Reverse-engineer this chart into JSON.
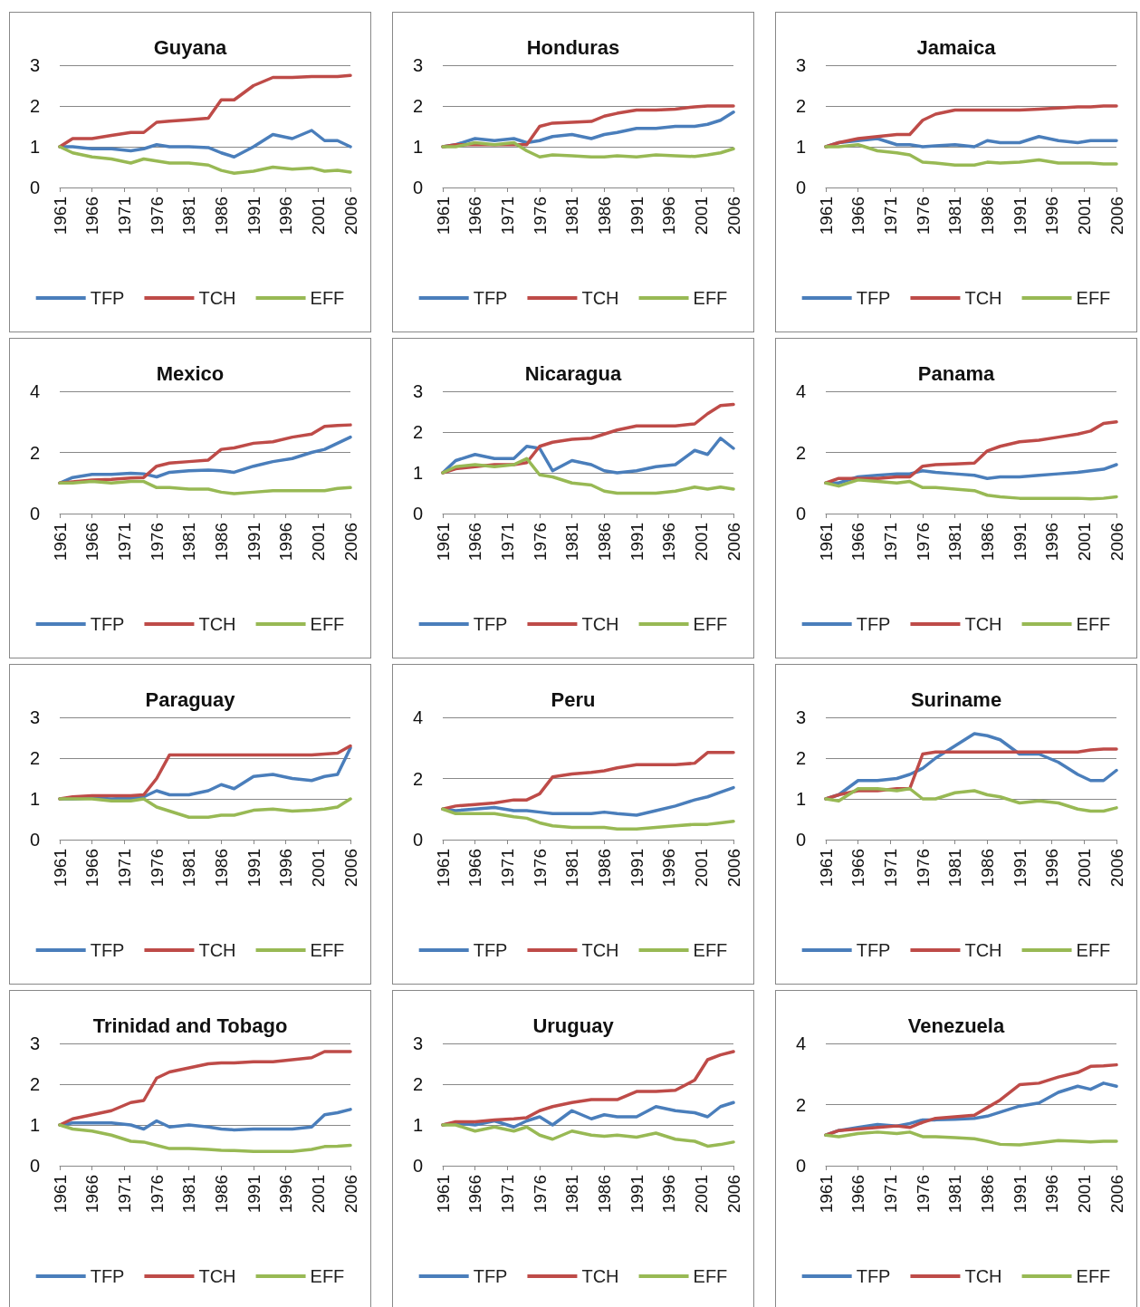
{
  "chart_data": [
    {
      "type": "line",
      "title": "Guyana",
      "x": [
        1961,
        1963,
        1966,
        1969,
        1972,
        1974,
        1976,
        1978,
        1981,
        1984,
        1986,
        1988,
        1991,
        1994,
        1997,
        2000,
        2002,
        2004,
        2006
      ],
      "xlim": [
        1961,
        2006
      ],
      "xticks": [
        1961,
        1966,
        1971,
        1976,
        1981,
        1986,
        1991,
        1996,
        2001,
        2006
      ],
      "ylim": [
        0,
        3
      ],
      "yticks": [
        0,
        1,
        2,
        3
      ],
      "grid": "y",
      "legend": "bottom",
      "marker": "none",
      "series": [
        {
          "name": "TFP",
          "color": "#4a7ebb",
          "values": [
            1,
            1,
            0.95,
            0.95,
            0.9,
            0.95,
            1.05,
            1,
            1,
            0.98,
            0.85,
            0.75,
            1,
            1.3,
            1.2,
            1.4,
            1.15,
            1.15,
            1
          ]
        },
        {
          "name": "TCH",
          "color": "#be4b48",
          "values": [
            1,
            1.2,
            1.2,
            1.28,
            1.35,
            1.35,
            1.6,
            1.63,
            1.66,
            1.7,
            2.15,
            2.15,
            2.5,
            2.7,
            2.7,
            2.72,
            2.72,
            2.72,
            2.75
          ]
        },
        {
          "name": "EFF",
          "color": "#98b954",
          "values": [
            1,
            0.85,
            0.75,
            0.7,
            0.6,
            0.7,
            0.65,
            0.6,
            0.6,
            0.55,
            0.42,
            0.35,
            0.4,
            0.5,
            0.45,
            0.48,
            0.4,
            0.42,
            0.38
          ]
        }
      ]
    },
    {
      "type": "line",
      "title": "Honduras",
      "x": [
        1961,
        1963,
        1966,
        1969,
        1972,
        1974,
        1976,
        1978,
        1981,
        1984,
        1986,
        1988,
        1991,
        1994,
        1997,
        2000,
        2002,
        2004,
        2006
      ],
      "xlim": [
        1961,
        2006
      ],
      "xticks": [
        1961,
        1966,
        1971,
        1976,
        1981,
        1986,
        1991,
        1996,
        2001,
        2006
      ],
      "ylim": [
        0,
        3
      ],
      "yticks": [
        0,
        1,
        2,
        3
      ],
      "grid": "y",
      "legend": "bottom",
      "marker": "none",
      "series": [
        {
          "name": "TFP",
          "color": "#4a7ebb",
          "values": [
            1,
            1.05,
            1.2,
            1.15,
            1.2,
            1.1,
            1.15,
            1.25,
            1.3,
            1.2,
            1.3,
            1.35,
            1.45,
            1.45,
            1.5,
            1.5,
            1.55,
            1.65,
            1.85
          ]
        },
        {
          "name": "TCH",
          "color": "#be4b48",
          "values": [
            1,
            1.05,
            1.05,
            1.05,
            1.05,
            1.05,
            1.5,
            1.58,
            1.6,
            1.62,
            1.75,
            1.82,
            1.9,
            1.9,
            1.92,
            1.98,
            2,
            2,
            2
          ]
        },
        {
          "name": "EFF",
          "color": "#98b954",
          "values": [
            1,
            1,
            1.1,
            1.05,
            1.1,
            0.9,
            0.75,
            0.8,
            0.78,
            0.75,
            0.75,
            0.78,
            0.75,
            0.8,
            0.78,
            0.76,
            0.8,
            0.85,
            0.95
          ]
        }
      ]
    },
    {
      "type": "line",
      "title": "Jamaica",
      "x": [
        1961,
        1963,
        1966,
        1969,
        1972,
        1974,
        1976,
        1978,
        1981,
        1984,
        1986,
        1988,
        1991,
        1994,
        1997,
        2000,
        2002,
        2004,
        2006
      ],
      "xlim": [
        1961,
        2006
      ],
      "xticks": [
        1961,
        1966,
        1971,
        1976,
        1981,
        1986,
        1991,
        1996,
        2001,
        2006
      ],
      "ylim": [
        0,
        3
      ],
      "yticks": [
        0,
        1,
        2,
        3
      ],
      "grid": "y",
      "legend": "bottom",
      "marker": "none",
      "series": [
        {
          "name": "TFP",
          "color": "#4a7ebb",
          "values": [
            1,
            1.1,
            1.15,
            1.2,
            1.05,
            1.05,
            1,
            1.02,
            1.05,
            1,
            1.15,
            1.1,
            1.1,
            1.25,
            1.15,
            1.1,
            1.15,
            1.15,
            1.15
          ]
        },
        {
          "name": "TCH",
          "color": "#be4b48",
          "values": [
            1,
            1.1,
            1.2,
            1.25,
            1.3,
            1.3,
            1.65,
            1.8,
            1.9,
            1.9,
            1.9,
            1.9,
            1.9,
            1.92,
            1.95,
            1.98,
            1.98,
            2,
            2
          ]
        },
        {
          "name": "EFF",
          "color": "#98b954",
          "values": [
            1,
            1,
            1.05,
            0.9,
            0.85,
            0.8,
            0.62,
            0.6,
            0.55,
            0.55,
            0.62,
            0.6,
            0.62,
            0.68,
            0.6,
            0.6,
            0.6,
            0.58,
            0.58
          ]
        }
      ]
    },
    {
      "type": "line",
      "title": "Mexico",
      "x": [
        1961,
        1963,
        1966,
        1969,
        1972,
        1974,
        1976,
        1978,
        1981,
        1984,
        1986,
        1988,
        1991,
        1994,
        1997,
        2000,
        2002,
        2004,
        2006
      ],
      "xlim": [
        1961,
        2006
      ],
      "xticks": [
        1961,
        1966,
        1971,
        1976,
        1981,
        1986,
        1991,
        1996,
        2001,
        2006
      ],
      "ylim": [
        0,
        4
      ],
      "yticks": [
        0,
        2,
        4
      ],
      "grid": "y",
      "legend": "bottom",
      "marker": "none",
      "series": [
        {
          "name": "TFP",
          "color": "#4a7ebb",
          "values": [
            1,
            1.18,
            1.28,
            1.28,
            1.32,
            1.3,
            1.2,
            1.35,
            1.4,
            1.42,
            1.4,
            1.35,
            1.55,
            1.7,
            1.8,
            2,
            2.1,
            2.3,
            2.5
          ]
        },
        {
          "name": "TCH",
          "color": "#be4b48",
          "values": [
            1,
            1.04,
            1.1,
            1.12,
            1.16,
            1.18,
            1.55,
            1.65,
            1.7,
            1.75,
            2.1,
            2.15,
            2.3,
            2.35,
            2.5,
            2.6,
            2.85,
            2.88,
            2.9
          ]
        },
        {
          "name": "EFF",
          "color": "#98b954",
          "values": [
            1,
            1,
            1.05,
            1,
            1.05,
            1.05,
            0.85,
            0.85,
            0.8,
            0.8,
            0.7,
            0.65,
            0.7,
            0.75,
            0.75,
            0.75,
            0.75,
            0.82,
            0.85
          ]
        }
      ]
    },
    {
      "type": "line",
      "title": "Nicaragua",
      "x": [
        1961,
        1963,
        1966,
        1969,
        1972,
        1974,
        1976,
        1978,
        1981,
        1984,
        1986,
        1988,
        1991,
        1994,
        1997,
        2000,
        2002,
        2004,
        2006
      ],
      "xlim": [
        1961,
        2006
      ],
      "xticks": [
        1961,
        1966,
        1971,
        1976,
        1981,
        1986,
        1991,
        1996,
        2001,
        2006
      ],
      "ylim": [
        0,
        3
      ],
      "yticks": [
        0,
        1,
        2,
        3
      ],
      "grid": "y",
      "legend": "bottom",
      "marker": "none",
      "series": [
        {
          "name": "TFP",
          "color": "#4a7ebb",
          "values": [
            1,
            1.3,
            1.45,
            1.35,
            1.35,
            1.65,
            1.6,
            1.05,
            1.3,
            1.2,
            1.05,
            1,
            1.05,
            1.15,
            1.2,
            1.55,
            1.45,
            1.85,
            1.6
          ]
        },
        {
          "name": "TCH",
          "color": "#be4b48",
          "values": [
            1,
            1.1,
            1.15,
            1.2,
            1.2,
            1.25,
            1.65,
            1.75,
            1.82,
            1.85,
            1.95,
            2.05,
            2.15,
            2.15,
            2.15,
            2.2,
            2.45,
            2.65,
            2.68
          ]
        },
        {
          "name": "EFF",
          "color": "#98b954",
          "values": [
            1,
            1.15,
            1.2,
            1.15,
            1.2,
            1.35,
            0.95,
            0.9,
            0.75,
            0.7,
            0.55,
            0.5,
            0.5,
            0.5,
            0.55,
            0.65,
            0.6,
            0.65,
            0.6
          ]
        }
      ]
    },
    {
      "type": "line",
      "title": "Panama",
      "x": [
        1961,
        1963,
        1966,
        1969,
        1972,
        1974,
        1976,
        1978,
        1981,
        1984,
        1986,
        1988,
        1991,
        1994,
        1997,
        2000,
        2002,
        2004,
        2006
      ],
      "xlim": [
        1961,
        2006
      ],
      "xticks": [
        1961,
        1966,
        1971,
        1976,
        1981,
        1986,
        1991,
        1996,
        2001,
        2006
      ],
      "ylim": [
        0,
        4
      ],
      "yticks": [
        0,
        2,
        4
      ],
      "grid": "y",
      "legend": "bottom",
      "marker": "none",
      "series": [
        {
          "name": "TFP",
          "color": "#4a7ebb",
          "values": [
            1,
            1,
            1.2,
            1.25,
            1.3,
            1.3,
            1.4,
            1.35,
            1.3,
            1.25,
            1.15,
            1.2,
            1.2,
            1.25,
            1.3,
            1.35,
            1.4,
            1.45,
            1.6
          ]
        },
        {
          "name": "TCH",
          "color": "#be4b48",
          "values": [
            1,
            1.15,
            1.15,
            1.15,
            1.2,
            1.2,
            1.55,
            1.6,
            1.62,
            1.65,
            2.05,
            2.2,
            2.35,
            2.4,
            2.5,
            2.6,
            2.7,
            2.95,
            3
          ]
        },
        {
          "name": "EFF",
          "color": "#98b954",
          "values": [
            1,
            0.9,
            1.1,
            1.05,
            1,
            1.05,
            0.85,
            0.85,
            0.8,
            0.75,
            0.6,
            0.55,
            0.5,
            0.5,
            0.5,
            0.5,
            0.48,
            0.5,
            0.55
          ]
        }
      ]
    },
    {
      "type": "line",
      "title": "Paraguay",
      "x": [
        1961,
        1963,
        1966,
        1969,
        1972,
        1974,
        1976,
        1978,
        1981,
        1984,
        1986,
        1988,
        1991,
        1994,
        1997,
        2000,
        2002,
        2004,
        2006
      ],
      "xlim": [
        1961,
        2006
      ],
      "xticks": [
        1961,
        1966,
        1971,
        1976,
        1981,
        1986,
        1991,
        1996,
        2001,
        2006
      ],
      "ylim": [
        0,
        3
      ],
      "yticks": [
        0,
        1,
        2,
        3
      ],
      "grid": "y",
      "legend": "bottom",
      "marker": "none",
      "series": [
        {
          "name": "TFP",
          "color": "#4a7ebb",
          "values": [
            1,
            1,
            1.02,
            1,
            1.02,
            1.05,
            1.2,
            1.1,
            1.1,
            1.2,
            1.35,
            1.25,
            1.55,
            1.6,
            1.5,
            1.45,
            1.55,
            1.6,
            2.25
          ]
        },
        {
          "name": "TCH",
          "color": "#be4b48",
          "values": [
            1,
            1.05,
            1.08,
            1.08,
            1.08,
            1.1,
            1.5,
            2.08,
            2.08,
            2.08,
            2.08,
            2.08,
            2.08,
            2.08,
            2.08,
            2.08,
            2.1,
            2.12,
            2.3
          ]
        },
        {
          "name": "EFF",
          "color": "#98b954",
          "values": [
            1,
            1,
            1,
            0.95,
            0.95,
            1,
            0.8,
            0.7,
            0.55,
            0.55,
            0.6,
            0.6,
            0.72,
            0.75,
            0.7,
            0.72,
            0.75,
            0.8,
            1
          ]
        }
      ]
    },
    {
      "type": "line",
      "title": "Peru",
      "x": [
        1961,
        1963,
        1966,
        1969,
        1972,
        1974,
        1976,
        1978,
        1981,
        1984,
        1986,
        1988,
        1991,
        1994,
        1997,
        2000,
        2002,
        2004,
        2006
      ],
      "xlim": [
        1961,
        2006
      ],
      "xticks": [
        1961,
        1966,
        1971,
        1976,
        1981,
        1986,
        1991,
        1996,
        2001,
        2006
      ],
      "ylim": [
        0,
        4
      ],
      "yticks": [
        0,
        2,
        4
      ],
      "grid": "y",
      "legend": "bottom",
      "marker": "none",
      "series": [
        {
          "name": "TFP",
          "color": "#4a7ebb",
          "values": [
            1,
            0.95,
            1,
            1.05,
            0.95,
            0.95,
            0.9,
            0.85,
            0.85,
            0.85,
            0.9,
            0.85,
            0.8,
            0.95,
            1.1,
            1.3,
            1.4,
            1.55,
            1.7
          ]
        },
        {
          "name": "TCH",
          "color": "#be4b48",
          "values": [
            1,
            1.1,
            1.15,
            1.2,
            1.3,
            1.3,
            1.5,
            2.05,
            2.15,
            2.2,
            2.25,
            2.35,
            2.45,
            2.45,
            2.45,
            2.5,
            2.85,
            2.85,
            2.85
          ]
        },
        {
          "name": "EFF",
          "color": "#98b954",
          "values": [
            1,
            0.85,
            0.85,
            0.85,
            0.75,
            0.7,
            0.55,
            0.45,
            0.4,
            0.4,
            0.4,
            0.35,
            0.35,
            0.4,
            0.45,
            0.5,
            0.5,
            0.55,
            0.6
          ]
        }
      ]
    },
    {
      "type": "line",
      "title": "Suriname",
      "x": [
        1961,
        1963,
        1966,
        1969,
        1972,
        1974,
        1976,
        1978,
        1981,
        1984,
        1986,
        1988,
        1991,
        1994,
        1997,
        2000,
        2002,
        2004,
        2006
      ],
      "xlim": [
        1961,
        2006
      ],
      "xticks": [
        1961,
        1966,
        1971,
        1976,
        1981,
        1986,
        1991,
        1996,
        2001,
        2006
      ],
      "ylim": [
        0,
        3
      ],
      "yticks": [
        0,
        1,
        2,
        3
      ],
      "grid": "y",
      "legend": "bottom",
      "marker": "none",
      "series": [
        {
          "name": "TFP",
          "color": "#4a7ebb",
          "values": [
            1,
            1.1,
            1.45,
            1.45,
            1.5,
            1.6,
            1.75,
            2,
            2.3,
            2.6,
            2.55,
            2.45,
            2.1,
            2.1,
            1.9,
            1.6,
            1.45,
            1.45,
            1.7
          ]
        },
        {
          "name": "TCH",
          "color": "#be4b48",
          "values": [
            1,
            1.1,
            1.2,
            1.2,
            1.25,
            1.25,
            2.1,
            2.15,
            2.15,
            2.15,
            2.15,
            2.15,
            2.15,
            2.15,
            2.15,
            2.15,
            2.2,
            2.22,
            2.22
          ]
        },
        {
          "name": "EFF",
          "color": "#98b954",
          "values": [
            1,
            0.95,
            1.25,
            1.25,
            1.2,
            1.25,
            1,
            1,
            1.15,
            1.2,
            1.1,
            1.05,
            0.9,
            0.95,
            0.9,
            0.75,
            0.7,
            0.7,
            0.78
          ]
        }
      ]
    },
    {
      "type": "line",
      "title": "Trinidad and Tobago",
      "x": [
        1961,
        1963,
        1966,
        1969,
        1972,
        1974,
        1976,
        1978,
        1981,
        1984,
        1986,
        1988,
        1991,
        1994,
        1997,
        2000,
        2002,
        2004,
        2006
      ],
      "xlim": [
        1961,
        2006
      ],
      "xticks": [
        1961,
        1966,
        1971,
        1976,
        1981,
        1986,
        1991,
        1996,
        2001,
        2006
      ],
      "ylim": [
        0,
        3
      ],
      "yticks": [
        0,
        1,
        2,
        3
      ],
      "grid": "y",
      "legend": "bottom",
      "marker": "none",
      "series": [
        {
          "name": "TFP",
          "color": "#4a7ebb",
          "values": [
            1,
            1.05,
            1.05,
            1.05,
            1,
            0.9,
            1.1,
            0.95,
            1,
            0.95,
            0.9,
            0.88,
            0.9,
            0.9,
            0.9,
            0.95,
            1.25,
            1.3,
            1.38
          ]
        },
        {
          "name": "TCH",
          "color": "#be4b48",
          "values": [
            1,
            1.15,
            1.25,
            1.35,
            1.55,
            1.6,
            2.15,
            2.3,
            2.4,
            2.5,
            2.52,
            2.52,
            2.55,
            2.55,
            2.6,
            2.65,
            2.8,
            2.8,
            2.8
          ]
        },
        {
          "name": "EFF",
          "color": "#98b954",
          "values": [
            1,
            0.9,
            0.85,
            0.75,
            0.6,
            0.58,
            0.5,
            0.42,
            0.42,
            0.4,
            0.38,
            0.37,
            0.35,
            0.35,
            0.35,
            0.4,
            0.47,
            0.48,
            0.5
          ]
        }
      ]
    },
    {
      "type": "line",
      "title": "Uruguay",
      "x": [
        1961,
        1963,
        1966,
        1969,
        1972,
        1974,
        1976,
        1978,
        1981,
        1984,
        1986,
        1988,
        1991,
        1994,
        1997,
        2000,
        2002,
        2004,
        2006
      ],
      "xlim": [
        1961,
        2006
      ],
      "xticks": [
        1961,
        1966,
        1971,
        1976,
        1981,
        1986,
        1991,
        1996,
        2001,
        2006
      ],
      "ylim": [
        0,
        3
      ],
      "yticks": [
        0,
        1,
        2,
        3
      ],
      "grid": "y",
      "legend": "bottom",
      "marker": "none",
      "series": [
        {
          "name": "TFP",
          "color": "#4a7ebb",
          "values": [
            1,
            1.05,
            1,
            1.1,
            0.95,
            1.1,
            1.2,
            1,
            1.35,
            1.15,
            1.25,
            1.2,
            1.2,
            1.45,
            1.35,
            1.3,
            1.2,
            1.45,
            1.55
          ]
        },
        {
          "name": "TCH",
          "color": "#be4b48",
          "values": [
            1,
            1.08,
            1.08,
            1.12,
            1.15,
            1.18,
            1.35,
            1.45,
            1.55,
            1.62,
            1.62,
            1.62,
            1.82,
            1.82,
            1.85,
            2.1,
            2.6,
            2.72,
            2.8
          ]
        },
        {
          "name": "EFF",
          "color": "#98b954",
          "values": [
            1,
            1,
            0.85,
            0.95,
            0.85,
            0.95,
            0.75,
            0.65,
            0.85,
            0.75,
            0.72,
            0.75,
            0.7,
            0.8,
            0.65,
            0.6,
            0.48,
            0.52,
            0.58
          ]
        }
      ]
    },
    {
      "type": "line",
      "title": "Venezuela",
      "x": [
        1961,
        1963,
        1966,
        1969,
        1972,
        1974,
        1976,
        1978,
        1981,
        1984,
        1986,
        1988,
        1991,
        1994,
        1997,
        2000,
        2002,
        2004,
        2006
      ],
      "xlim": [
        1961,
        2006
      ],
      "xticks": [
        1961,
        1966,
        1971,
        1976,
        1981,
        1986,
        1991,
        1996,
        2001,
        2006
      ],
      "ylim": [
        0,
        4
      ],
      "yticks": [
        0,
        2,
        4
      ],
      "grid": "y",
      "legend": "bottom",
      "marker": "none",
      "series": [
        {
          "name": "TFP",
          "color": "#4a7ebb",
          "values": [
            1,
            1.15,
            1.25,
            1.35,
            1.3,
            1.38,
            1.5,
            1.5,
            1.52,
            1.55,
            1.62,
            1.75,
            1.95,
            2.05,
            2.4,
            2.6,
            2.5,
            2.7,
            2.6
          ]
        },
        {
          "name": "TCH",
          "color": "#be4b48",
          "values": [
            1,
            1.15,
            1.2,
            1.25,
            1.3,
            1.25,
            1.42,
            1.55,
            1.6,
            1.65,
            1.9,
            2.15,
            2.65,
            2.7,
            2.9,
            3.05,
            3.25,
            3.27,
            3.3
          ]
        },
        {
          "name": "EFF",
          "color": "#98b954",
          "values": [
            1,
            0.95,
            1.05,
            1.1,
            1.05,
            1.1,
            0.95,
            0.95,
            0.92,
            0.88,
            0.8,
            0.7,
            0.68,
            0.75,
            0.82,
            0.8,
            0.78,
            0.8,
            0.8
          ]
        }
      ]
    }
  ]
}
